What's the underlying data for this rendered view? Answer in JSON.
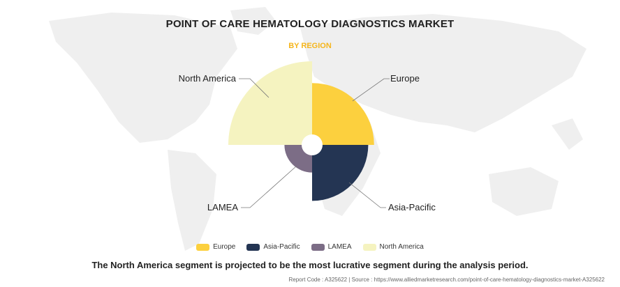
{
  "header": {
    "title": "POINT OF CARE HEMATOLOGY DIAGNOSTICS MARKET",
    "subtitle": "BY REGION"
  },
  "colors": {
    "europe": "#fcd03e",
    "asia_pacific": "#243553",
    "lamea": "#7c6d86",
    "north_america": "#f5f3c0",
    "accent": "#f5b51b"
  },
  "chart_data": {
    "type": "pie",
    "subtype": "polar-area",
    "title": "POINT OF CARE HEMATOLOGY DIAGNOSTICS MARKET",
    "subtitle": "BY REGION",
    "series": [
      {
        "name": "Europe",
        "relative_radius": 0.74
      },
      {
        "name": "Asia-Pacific",
        "relative_radius": 0.67
      },
      {
        "name": "LAMEA",
        "relative_radius": 0.33
      },
      {
        "name": "North America",
        "relative_radius": 1.0
      }
    ],
    "legend_position": "bottom"
  },
  "legend": [
    "Europe",
    "Asia-Pacific",
    "LAMEA",
    "North America"
  ],
  "caption": "The North America segment is projected to be the most lucrative segment during the analysis period.",
  "footer": "Report Code : A325622  |  Source : https://www.alliedmarketresearch.com/point-of-care-hematology-diagnostics-market-A325622"
}
